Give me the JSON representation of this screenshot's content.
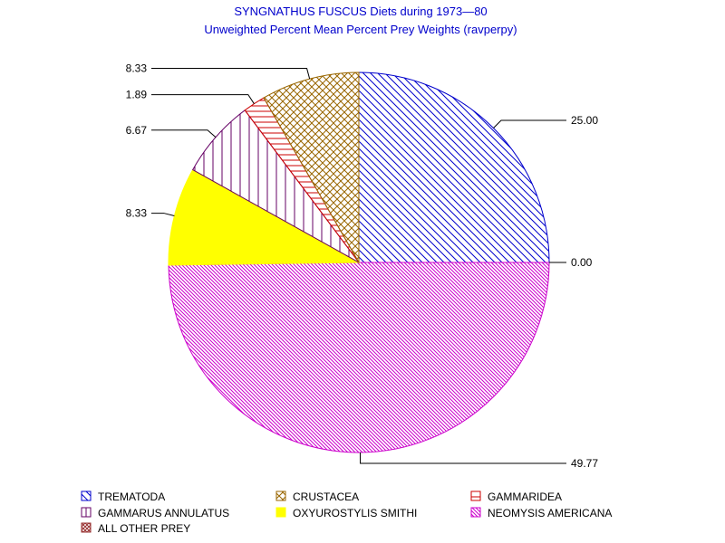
{
  "chart_data": {
    "type": "pie",
    "title": "SYNGNATHUS FUSCUS Diets during 1973—80",
    "subtitle": "Unweighted Percent Mean Percent Prey  Weights (ravperpy)",
    "slices": [
      {
        "name": "TREMATODA",
        "value": 25.0,
        "label": "25.00",
        "color": "#0000cc",
        "pattern": "diag-down"
      },
      {
        "name": "ALL OTHER PREY",
        "value": 0.0,
        "label": "0.00",
        "color": "#993333",
        "pattern": "crosshatch-dense"
      },
      {
        "name": "NEOMYSIS AMERICANA",
        "value": 49.77,
        "label": "49.77",
        "color": "#cc00cc",
        "pattern": "diag-down-dense"
      },
      {
        "name": "OXYUROSTYLIS SMITHI",
        "value": 8.33,
        "label": "8.33",
        "color": "#ffff00",
        "pattern": "solid"
      },
      {
        "name": "GAMMARUS ANNULATUS",
        "value": 6.67,
        "label": "6.67",
        "color": "#660066",
        "pattern": "vertical"
      },
      {
        "name": "GAMMARIDEA",
        "value": 1.89,
        "label": "1.89",
        "color": "#cc0000",
        "pattern": "horizontal"
      },
      {
        "name": "CRUSTACEA",
        "value": 8.33,
        "label": "8.33",
        "color": "#996600",
        "pattern": "crosshatch"
      }
    ],
    "legend": [
      "TREMATODA",
      "CRUSTACEA",
      "GAMMARIDEA",
      "GAMMARUS ANNULATUS",
      "OXYUROSTYLIS SMITHI",
      "NEOMYSIS AMERICANA",
      "ALL OTHER PREY"
    ],
    "legend_placement": "bottom"
  }
}
